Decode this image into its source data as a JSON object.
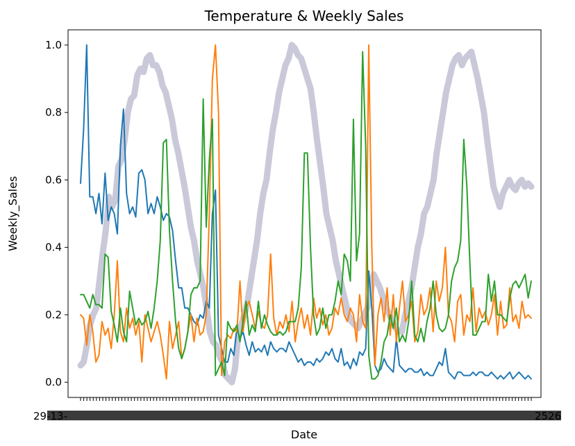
{
  "chart_data": {
    "type": "line",
    "title": "Temperature & Weekly Sales",
    "xlabel": "Date",
    "ylabel": "Weekly_Sales",
    "ylim": [
      -0.045,
      1.045
    ],
    "yticks": [
      "0.0",
      "0.2",
      "0.4",
      "0.6",
      "0.8",
      "1.0"
    ],
    "xtick_count": 143,
    "xtick_labels": [
      "29-",
      "13-",
      "25",
      "26"
    ],
    "grid": false,
    "legend": "none",
    "series": [
      {
        "color": "#1f77b4",
        "values": [
          0.59,
          0.75,
          1.0,
          0.55,
          0.55,
          0.5,
          0.56,
          0.47,
          0.62,
          0.48,
          0.52,
          0.5,
          0.44,
          0.7,
          0.81,
          0.56,
          0.5,
          0.52,
          0.49,
          0.62,
          0.63,
          0.6,
          0.5,
          0.53,
          0.5,
          0.55,
          0.52,
          0.48,
          0.5,
          0.49,
          0.45,
          0.36,
          0.28,
          0.28,
          0.22,
          0.22,
          0.2,
          0.18,
          0.17,
          0.2,
          0.19,
          0.24,
          0.22,
          0.5,
          0.57,
          0.14,
          0.1,
          0.06,
          0.06,
          0.1,
          0.08,
          0.16,
          0.13,
          0.15,
          0.11,
          0.08,
          0.12,
          0.09,
          0.1,
          0.09,
          0.11,
          0.08,
          0.12,
          0.1,
          0.09,
          0.1,
          0.1,
          0.09,
          0.12,
          0.1,
          0.08,
          0.06,
          0.07,
          0.05,
          0.06,
          0.06,
          0.05,
          0.07,
          0.06,
          0.07,
          0.09,
          0.08,
          0.1,
          0.07,
          0.06,
          0.1,
          0.05,
          0.06,
          0.04,
          0.07,
          0.05,
          0.09,
          0.08,
          0.1,
          0.33,
          0.22,
          0.05,
          0.03,
          0.04,
          0.07,
          0.05,
          0.04,
          0.03,
          0.13,
          0.05,
          0.04,
          0.03,
          0.04,
          0.04,
          0.03,
          0.03,
          0.04,
          0.02,
          0.03,
          0.02,
          0.02,
          0.04,
          0.06,
          0.05,
          0.1,
          0.03,
          0.02,
          0.01,
          0.03,
          0.03,
          0.02,
          0.02,
          0.02,
          0.03,
          0.02,
          0.03,
          0.03,
          0.02,
          0.02,
          0.03,
          0.02,
          0.01,
          0.02,
          0.01,
          0.02,
          0.03,
          0.01,
          0.02,
          0.03,
          0.02,
          0.01,
          0.02,
          0.01
        ]
      },
      {
        "color": "#ff7f0e",
        "values": [
          0.2,
          0.19,
          0.11,
          0.2,
          0.15,
          0.06,
          0.08,
          0.18,
          0.14,
          0.16,
          0.1,
          0.2,
          0.36,
          0.15,
          0.12,
          0.22,
          0.16,
          0.19,
          0.14,
          0.18,
          0.06,
          0.2,
          0.16,
          0.12,
          0.15,
          0.18,
          0.14,
          0.08,
          0.01,
          0.18,
          0.1,
          0.14,
          0.18,
          0.07,
          0.1,
          0.15,
          0.2,
          0.12,
          0.19,
          0.14,
          0.15,
          0.2,
          0.5,
          0.9,
          1.0,
          0.8,
          0.02,
          0.12,
          0.14,
          0.13,
          0.16,
          0.15,
          0.3,
          0.15,
          0.22,
          0.24,
          0.2,
          0.16,
          0.21,
          0.17,
          0.16,
          0.2,
          0.38,
          0.19,
          0.14,
          0.18,
          0.16,
          0.2,
          0.15,
          0.24,
          0.12,
          0.18,
          0.22,
          0.16,
          0.2,
          0.14,
          0.25,
          0.19,
          0.22,
          0.17,
          0.2,
          0.14,
          0.16,
          0.22,
          0.2,
          0.25,
          0.2,
          0.18,
          0.22,
          0.2,
          0.12,
          0.26,
          0.18,
          0.16,
          1.0,
          0.4,
          0.05,
          0.2,
          0.25,
          0.18,
          0.28,
          0.14,
          0.26,
          0.12,
          0.22,
          0.3,
          0.18,
          0.2,
          0.24,
          0.12,
          0.15,
          0.26,
          0.2,
          0.22,
          0.28,
          0.15,
          0.3,
          0.24,
          0.28,
          0.4,
          0.2,
          0.18,
          0.12,
          0.24,
          0.26,
          0.14,
          0.2,
          0.18,
          0.28,
          0.15,
          0.22,
          0.19,
          0.21,
          0.17,
          0.2,
          0.26,
          0.14,
          0.24,
          0.16,
          0.17,
          0.28,
          0.18,
          0.2,
          0.16,
          0.24,
          0.19,
          0.2,
          0.19
        ]
      },
      {
        "color": "#2ca02c",
        "values": [
          0.26,
          0.26,
          0.24,
          0.22,
          0.26,
          0.23,
          0.23,
          0.22,
          0.38,
          0.37,
          0.21,
          0.17,
          0.12,
          0.22,
          0.15,
          0.12,
          0.27,
          0.22,
          0.17,
          0.19,
          0.17,
          0.18,
          0.21,
          0.16,
          0.22,
          0.3,
          0.42,
          0.71,
          0.72,
          0.45,
          0.3,
          0.18,
          0.1,
          0.07,
          0.1,
          0.15,
          0.26,
          0.28,
          0.28,
          0.3,
          0.84,
          0.46,
          0.66,
          0.78,
          0.02,
          0.04,
          0.06,
          0.02,
          0.18,
          0.16,
          0.15,
          0.17,
          0.12,
          0.18,
          0.24,
          0.14,
          0.17,
          0.15,
          0.24,
          0.16,
          0.2,
          0.17,
          0.15,
          0.14,
          0.14,
          0.15,
          0.14,
          0.15,
          0.18,
          0.18,
          0.18,
          0.22,
          0.34,
          0.68,
          0.68,
          0.4,
          0.2,
          0.14,
          0.16,
          0.22,
          0.16,
          0.2,
          0.2,
          0.24,
          0.3,
          0.26,
          0.38,
          0.36,
          0.3,
          0.78,
          0.36,
          0.44,
          0.98,
          0.7,
          0.08,
          0.01,
          0.01,
          0.02,
          0.06,
          0.12,
          0.14,
          0.2,
          0.16,
          0.22,
          0.12,
          0.14,
          0.12,
          0.18,
          0.3,
          0.14,
          0.12,
          0.16,
          0.12,
          0.18,
          0.22,
          0.3,
          0.2,
          0.16,
          0.15,
          0.16,
          0.2,
          0.3,
          0.34,
          0.36,
          0.42,
          0.72,
          0.58,
          0.35,
          0.14,
          0.14,
          0.16,
          0.18,
          0.18,
          0.32,
          0.24,
          0.3,
          0.2,
          0.2,
          0.19,
          0.18,
          0.25,
          0.29,
          0.3,
          0.28,
          0.3,
          0.32,
          0.25,
          0.3
        ]
      },
      {
        "color": "#c9c9d9",
        "values": [
          0.05,
          0.06,
          0.11,
          0.17,
          0.2,
          0.22,
          0.3,
          0.38,
          0.45,
          0.55,
          0.52,
          0.54,
          0.64,
          0.66,
          0.72,
          0.8,
          0.84,
          0.85,
          0.91,
          0.93,
          0.92,
          0.96,
          0.97,
          0.94,
          0.94,
          0.92,
          0.88,
          0.86,
          0.82,
          0.78,
          0.72,
          0.68,
          0.63,
          0.58,
          0.52,
          0.46,
          0.42,
          0.36,
          0.32,
          0.28,
          0.22,
          0.15,
          0.12,
          0.11,
          0.08,
          0.06,
          0.02,
          0.01,
          0.0,
          0.04,
          0.14,
          0.17,
          0.2,
          0.24,
          0.3,
          0.36,
          0.42,
          0.5,
          0.56,
          0.6,
          0.68,
          0.75,
          0.8,
          0.86,
          0.9,
          0.94,
          0.96,
          1.0,
          0.99,
          0.97,
          0.96,
          0.93,
          0.9,
          0.87,
          0.8,
          0.72,
          0.65,
          0.58,
          0.5,
          0.46,
          0.42,
          0.36,
          0.32,
          0.28,
          0.24,
          0.2,
          0.18,
          0.17,
          0.16,
          0.18,
          0.2,
          0.22,
          0.26,
          0.32,
          0.3,
          0.28,
          0.25,
          0.22,
          0.2,
          0.18,
          0.16,
          0.15,
          0.15,
          0.2,
          0.24,
          0.28,
          0.34,
          0.4,
          0.44,
          0.5,
          0.52,
          0.56,
          0.6,
          0.68,
          0.74,
          0.8,
          0.86,
          0.9,
          0.94,
          0.96,
          0.97,
          0.94,
          0.96,
          0.97,
          0.98,
          0.94,
          0.9,
          0.85,
          0.8,
          0.72,
          0.65,
          0.58,
          0.55,
          0.52,
          0.56,
          0.58,
          0.6,
          0.58,
          0.57,
          0.59,
          0.6,
          0.58,
          0.59,
          0.58
        ]
      }
    ]
  }
}
